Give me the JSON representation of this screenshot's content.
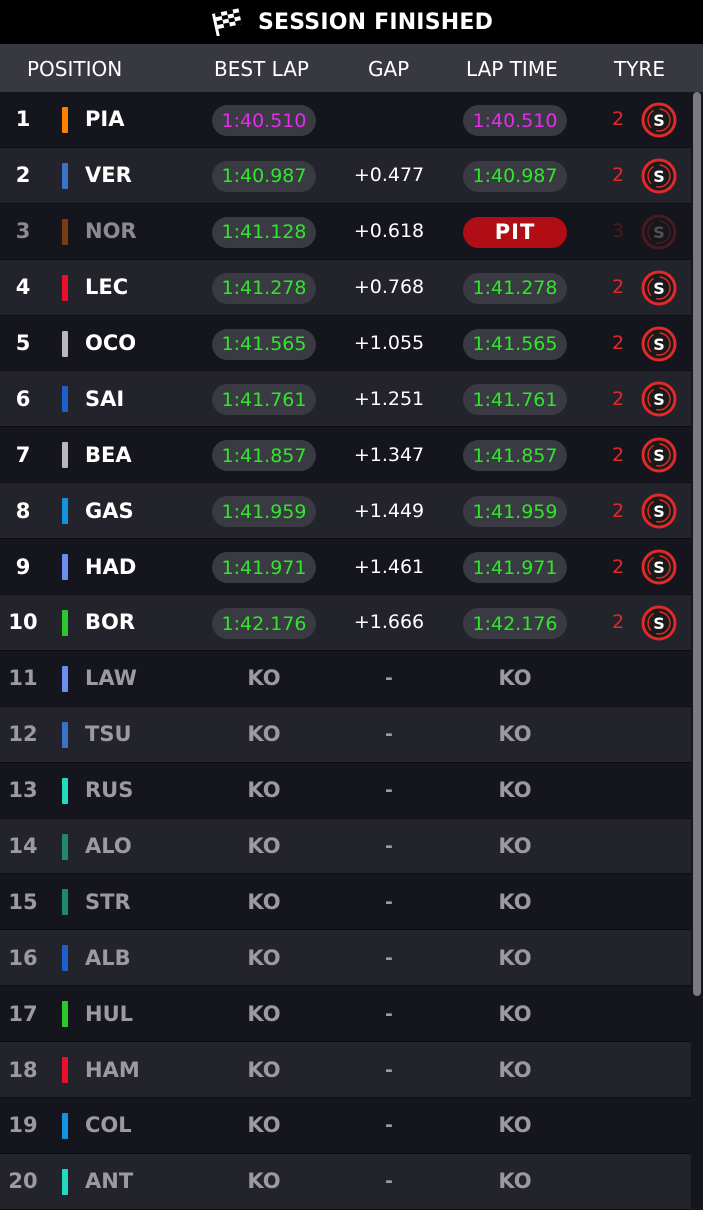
{
  "session": {
    "title": "SESSION FINISHED",
    "flag_icon": "checkered-flag-icon"
  },
  "columns": {
    "position": "POSITION",
    "best_lap": "BEST LAP",
    "gap": "GAP",
    "lap_time": "LAP TIME",
    "tyre": "TYRE"
  },
  "colors": {
    "purple": "#e22ee8",
    "green": "#2fe62a",
    "pit": "#b00e14",
    "tyre_soft": "#e02a2a"
  },
  "rows": [
    {
      "pos": "1",
      "code": "PIA",
      "team_color": "#ff8000",
      "best": "1:40.510",
      "best_color": "#e22ee8",
      "gap": "",
      "lap": "1:40.510",
      "lap_color": "#e22ee8",
      "tyre_count": "2",
      "tyre": "S",
      "state": "active"
    },
    {
      "pos": "2",
      "code": "VER",
      "team_color": "#3a71c9",
      "best": "1:40.987",
      "best_color": "#2fe62a",
      "gap": "+0.477",
      "lap": "1:40.987",
      "lap_color": "#2fe62a",
      "tyre_count": "2",
      "tyre": "S",
      "state": "active"
    },
    {
      "pos": "3",
      "code": "NOR",
      "team_color": "#7a3a12",
      "best": "1:41.128",
      "best_color": "#2fe62a",
      "gap": "+0.618",
      "lap": "PIT",
      "lap_color": "#ffffff",
      "tyre_count": "3",
      "tyre": "S",
      "state": "pit"
    },
    {
      "pos": "4",
      "code": "LEC",
      "team_color": "#e8102a",
      "best": "1:41.278",
      "best_color": "#2fe62a",
      "gap": "+0.768",
      "lap": "1:41.278",
      "lap_color": "#2fe62a",
      "tyre_count": "2",
      "tyre": "S",
      "state": "active"
    },
    {
      "pos": "5",
      "code": "OCO",
      "team_color": "#b8b8bc",
      "best": "1:41.565",
      "best_color": "#2fe62a",
      "gap": "+1.055",
      "lap": "1:41.565",
      "lap_color": "#2fe62a",
      "tyre_count": "2",
      "tyre": "S",
      "state": "active"
    },
    {
      "pos": "6",
      "code": "SAI",
      "team_color": "#1e5fd0",
      "best": "1:41.761",
      "best_color": "#2fe62a",
      "gap": "+1.251",
      "lap": "1:41.761",
      "lap_color": "#2fe62a",
      "tyre_count": "2",
      "tyre": "S",
      "state": "active"
    },
    {
      "pos": "7",
      "code": "BEA",
      "team_color": "#b8b8bc",
      "best": "1:41.857",
      "best_color": "#2fe62a",
      "gap": "+1.347",
      "lap": "1:41.857",
      "lap_color": "#2fe62a",
      "tyre_count": "2",
      "tyre": "S",
      "state": "active"
    },
    {
      "pos": "8",
      "code": "GAS",
      "team_color": "#1493e0",
      "best": "1:41.959",
      "best_color": "#2fe62a",
      "gap": "+1.449",
      "lap": "1:41.959",
      "lap_color": "#2fe62a",
      "tyre_count": "2",
      "tyre": "S",
      "state": "active"
    },
    {
      "pos": "9",
      "code": "HAD",
      "team_color": "#6c8ef0",
      "best": "1:41.971",
      "best_color": "#2fe62a",
      "gap": "+1.461",
      "lap": "1:41.971",
      "lap_color": "#2fe62a",
      "tyre_count": "2",
      "tyre": "S",
      "state": "active"
    },
    {
      "pos": "10",
      "code": "BOR",
      "team_color": "#2bc72b",
      "best": "1:42.176",
      "best_color": "#2fe62a",
      "gap": "+1.666",
      "lap": "1:42.176",
      "lap_color": "#2fe62a",
      "tyre_count": "2",
      "tyre": "S",
      "state": "active"
    },
    {
      "pos": "11",
      "code": "LAW",
      "team_color": "#6c8ef0",
      "best": "KO",
      "gap": "-",
      "lap": "KO",
      "state": "out"
    },
    {
      "pos": "12",
      "code": "TSU",
      "team_color": "#3a71c9",
      "best": "KO",
      "gap": "-",
      "lap": "KO",
      "state": "out"
    },
    {
      "pos": "13",
      "code": "RUS",
      "team_color": "#27d8c0",
      "best": "KO",
      "gap": "-",
      "lap": "KO",
      "state": "out"
    },
    {
      "pos": "14",
      "code": "ALO",
      "team_color": "#1f8a6b",
      "best": "KO",
      "gap": "-",
      "lap": "KO",
      "state": "out"
    },
    {
      "pos": "15",
      "code": "STR",
      "team_color": "#1f8a6b",
      "best": "KO",
      "gap": "-",
      "lap": "KO",
      "state": "out"
    },
    {
      "pos": "16",
      "code": "ALB",
      "team_color": "#1e5fd0",
      "best": "KO",
      "gap": "-",
      "lap": "KO",
      "state": "out"
    },
    {
      "pos": "17",
      "code": "HUL",
      "team_color": "#2bc72b",
      "best": "KO",
      "gap": "-",
      "lap": "KO",
      "state": "out"
    },
    {
      "pos": "18",
      "code": "HAM",
      "team_color": "#e8102a",
      "best": "KO",
      "gap": "-",
      "lap": "KO",
      "state": "out"
    },
    {
      "pos": "19",
      "code": "COL",
      "team_color": "#1493e0",
      "best": "KO",
      "gap": "-",
      "lap": "KO",
      "state": "out"
    },
    {
      "pos": "20",
      "code": "ANT",
      "team_color": "#27d8c0",
      "best": "KO",
      "gap": "-",
      "lap": "KO",
      "state": "out"
    }
  ]
}
